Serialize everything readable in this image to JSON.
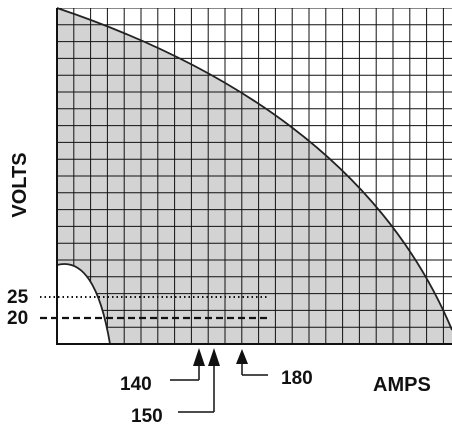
{
  "chart_data": {
    "type": "area",
    "title": "",
    "xlabel": "AMPS",
    "ylabel": "VOLTS",
    "grid": true,
    "colors": {
      "fill": "#d3d3d3",
      "line": "#222222",
      "grid": "#111111",
      "text": "#111111"
    },
    "y_reference_lines": [
      {
        "label": "25",
        "value": 25,
        "style": "dotted"
      },
      {
        "label": "20",
        "value": 20,
        "style": "dashed"
      }
    ],
    "x_markers": [
      {
        "label": "140",
        "value": 140
      },
      {
        "label": "150",
        "value": 150
      },
      {
        "label": "180",
        "value": 180
      }
    ]
  }
}
